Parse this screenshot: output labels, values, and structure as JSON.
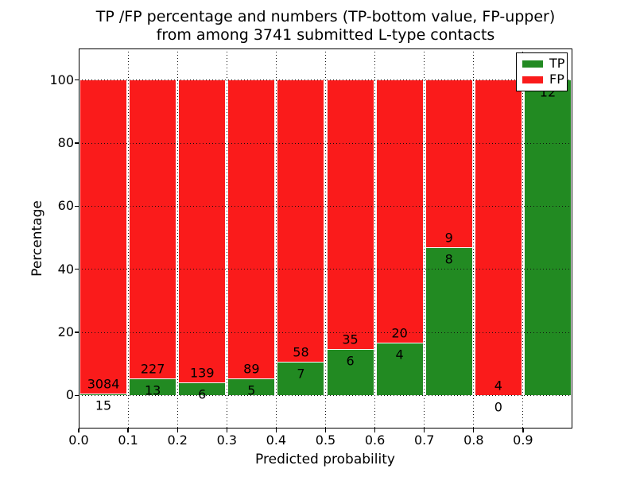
{
  "chart_data": {
    "type": "bar",
    "stacked": true,
    "title_line1": "TP /FP percentage and numbers (TP-bottom value, FP-upper)",
    "title_line2": "from among 3741 submitted L-type contacts",
    "xlabel": "Predicted probability",
    "ylabel": "Percentage",
    "total_submitted": 3741,
    "categories": [
      "0.0-0.1",
      "0.1-0.2",
      "0.2-0.3",
      "0.3-0.4",
      "0.4-0.5",
      "0.5-0.6",
      "0.6-0.7",
      "0.7-0.8",
      "0.8-0.9",
      "0.9-1.0"
    ],
    "series": [
      {
        "name": "TP",
        "color": "#228a22",
        "counts": [
          15,
          13,
          6,
          5,
          7,
          6,
          4,
          8,
          0,
          12
        ],
        "percent": [
          0.48,
          5.42,
          4.14,
          5.32,
          10.77,
          14.63,
          16.67,
          47.06,
          0,
          100
        ]
      },
      {
        "name": "FP",
        "color": "#fa1b1b",
        "counts": [
          3084,
          227,
          139,
          89,
          58,
          35,
          20,
          9,
          4,
          0
        ],
        "percent": [
          99.52,
          94.58,
          95.86,
          94.68,
          89.23,
          85.37,
          83.33,
          52.94,
          100,
          0
        ]
      }
    ],
    "fp_count_label_shown": [
      true,
      true,
      true,
      true,
      true,
      true,
      true,
      true,
      true,
      false
    ],
    "xticks": [
      "0.0",
      "0.1",
      "0.2",
      "0.3",
      "0.4",
      "0.5",
      "0.6",
      "0.7",
      "0.8",
      "0.9"
    ],
    "yticks": [
      "0",
      "20",
      "40",
      "60",
      "80",
      "100"
    ],
    "xlim": [
      0.0,
      1.0
    ],
    "ylim": [
      -10.5,
      110
    ],
    "grid": "dotted",
    "legend": {
      "position": "upper-right",
      "entries": [
        {
          "label": "TP",
          "color": "#228a22"
        },
        {
          "label": "FP",
          "color": "#fa1b1b"
        }
      ]
    }
  }
}
